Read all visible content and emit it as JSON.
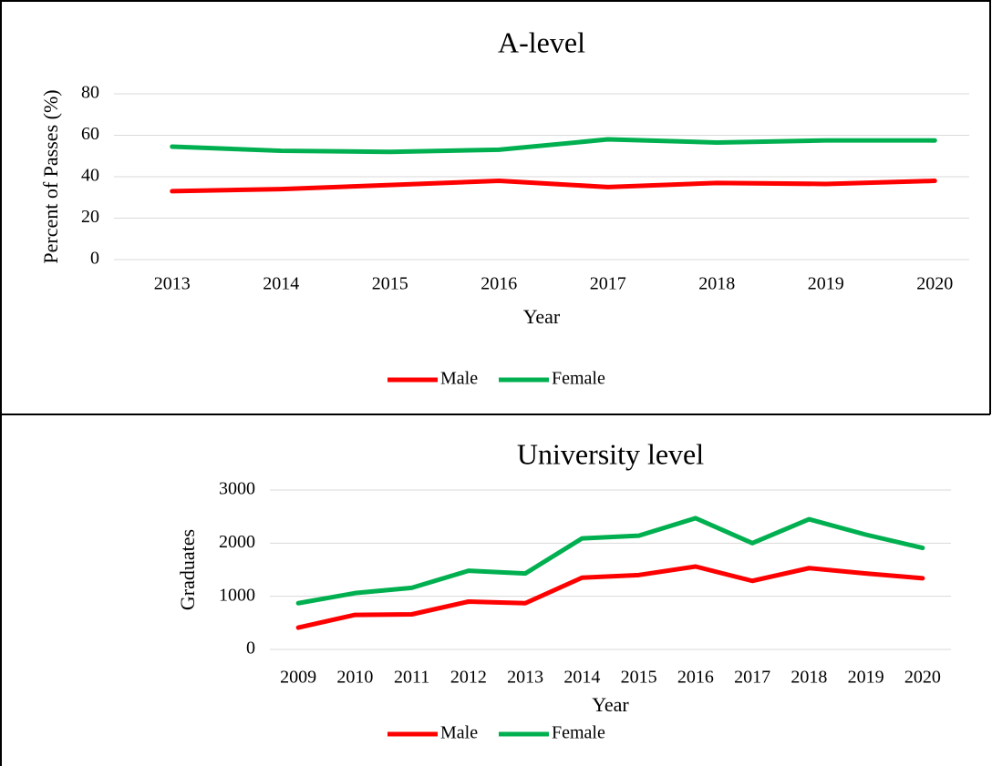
{
  "chart_data": [
    {
      "type": "line",
      "title": "A-level",
      "x_label": "Year",
      "y_label": "Percent of Passes (%)",
      "categories": [
        "2013",
        "2014",
        "2015",
        "2016",
        "2017",
        "2018",
        "2019",
        "2020"
      ],
      "series": [
        {
          "name": "Male",
          "color": "#ff0000",
          "values": [
            33,
            34,
            36,
            38,
            35,
            37,
            36.5,
            38
          ]
        },
        {
          "name": "Female",
          "color": "#00b050",
          "values": [
            54.5,
            52.5,
            52,
            53,
            58,
            56.5,
            57.5,
            57.5
          ]
        }
      ],
      "ylim": [
        0,
        80
      ],
      "yticks": [
        0,
        20,
        40,
        60,
        80
      ],
      "grid": true,
      "legend": "bottom"
    },
    {
      "type": "line",
      "title": "University level",
      "x_label": "Year",
      "y_label": "Graduates",
      "categories": [
        "2009",
        "2010",
        "2011",
        "2012",
        "2013",
        "2014",
        "2015",
        "2016",
        "2017",
        "2018",
        "2019",
        "2020"
      ],
      "series": [
        {
          "name": "Male",
          "color": "#ff0000",
          "values": [
            410,
            650,
            660,
            900,
            870,
            1350,
            1400,
            1560,
            1290,
            1530,
            1430,
            1340
          ]
        },
        {
          "name": "Female",
          "color": "#00b050",
          "values": [
            870,
            1060,
            1160,
            1480,
            1430,
            2090,
            2140,
            2470,
            2000,
            2450,
            2160,
            1910
          ]
        }
      ],
      "ylim": [
        0,
        3000
      ],
      "yticks": [
        0,
        1000,
        2000,
        3000
      ],
      "grid": true,
      "legend": "bottom"
    }
  ]
}
